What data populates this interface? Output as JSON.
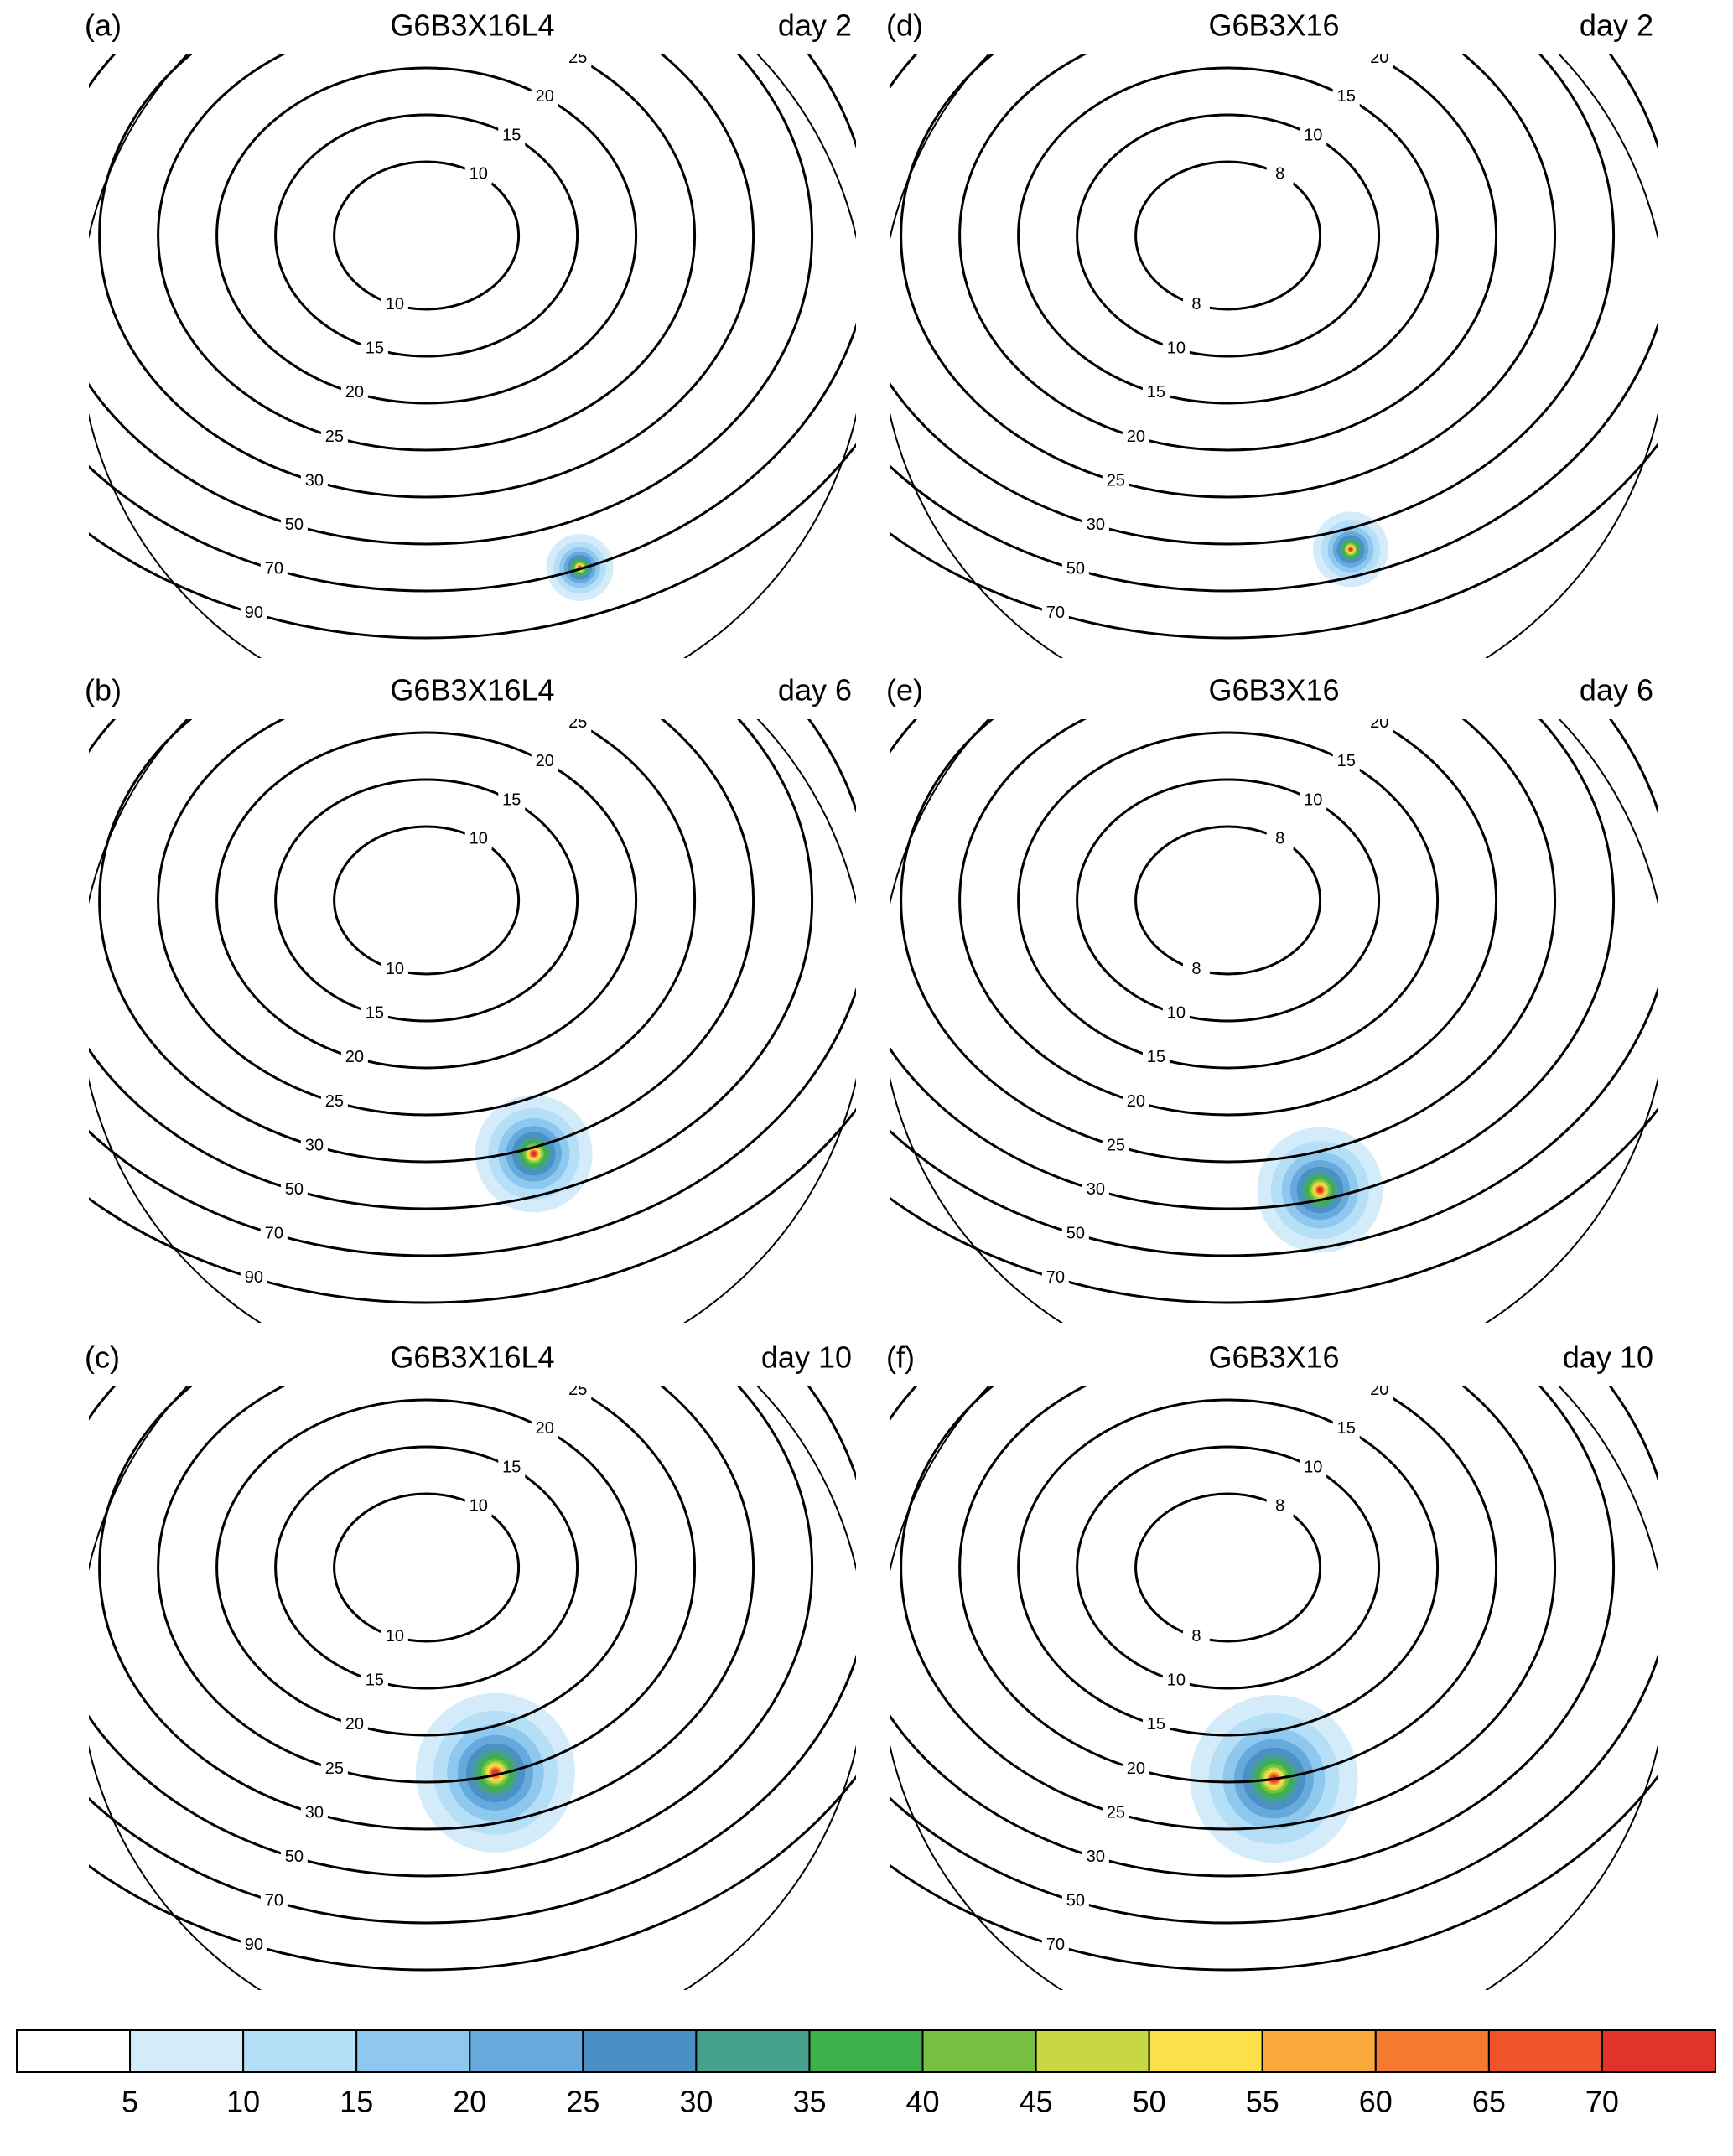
{
  "panels": [
    {
      "label": "(a)",
      "title": "G6B3X16L4",
      "day": "day 2",
      "contours": [
        10,
        15,
        20,
        25,
        30,
        50,
        70,
        90
      ]
    },
    {
      "label": "(d)",
      "title": "G6B3X16",
      "day": "day 2",
      "contours": [
        8,
        10,
        15,
        20,
        25,
        30,
        50,
        70
      ]
    },
    {
      "label": "(b)",
      "title": "G6B3X16L4",
      "day": "day 6",
      "contours": [
        10,
        15,
        20,
        25,
        30,
        50,
        70,
        90
      ]
    },
    {
      "label": "(e)",
      "title": "G6B3X16",
      "day": "day 6",
      "contours": [
        8,
        10,
        15,
        20,
        25,
        30,
        50,
        70
      ]
    },
    {
      "label": "(c)",
      "title": "G6B3X16L4",
      "day": "day 10",
      "contours": [
        10,
        15,
        20,
        25,
        30,
        50,
        70,
        90
      ]
    },
    {
      "label": "(f)",
      "title": "G6B3X16",
      "day": "day 10",
      "contours": [
        8,
        10,
        15,
        20,
        25,
        30,
        50,
        70
      ]
    }
  ],
  "colorbar": {
    "ticks": [
      5,
      10,
      15,
      20,
      25,
      30,
      35,
      40,
      45,
      50,
      55,
      60,
      65,
      70
    ],
    "colors": [
      "#ffffff",
      "#d4ecfa",
      "#b5dff7",
      "#8ec8ef",
      "#66a9dc",
      "#4a8fc6",
      "#45a08e",
      "#3db04a",
      "#76c043",
      "#c7d844",
      "#fce04a",
      "#f8a93a",
      "#f47a30",
      "#ee532a",
      "#e0332a"
    ]
  }
}
